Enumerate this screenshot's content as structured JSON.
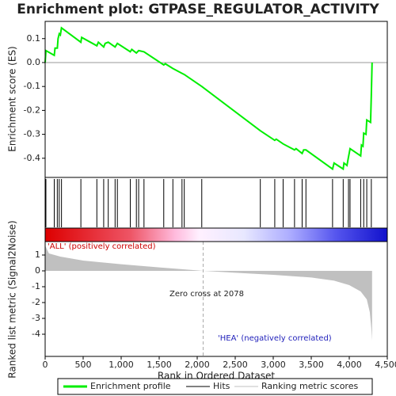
{
  "chart_data": [
    {
      "type": "line",
      "title": "Enrichment plot: GTPASE_REGULATOR_ACTIVITY",
      "ylabel": "Enrichment score (ES)",
      "xlim": [
        0,
        4500
      ],
      "ylim": [
        -0.48,
        0.172
      ],
      "yticks": [
        0.1,
        {
          "value": 0,
          "label": "0.0"
        },
        -0.1,
        -0.2,
        -0.3,
        -0.4
      ],
      "series": [
        {
          "name": "Enrichment profile",
          "color": "#00ee00",
          "x": [
            0,
            10,
            120,
            130,
            160,
            170,
            185,
            200,
            215,
            470,
            480,
            680,
            700,
            770,
            790,
            830,
            920,
            950,
            1120,
            1140,
            1200,
            1230,
            1300,
            1560,
            1580,
            1680,
            1800,
            1830,
            2060,
            2830,
            3020,
            3040,
            3130,
            3280,
            3300,
            3380,
            3400,
            3430,
            3780,
            3800,
            3920,
            3930,
            3970,
            3990,
            4010,
            4150,
            4160,
            4180,
            4190,
            4220,
            4230,
            4280,
            4290,
            4300
          ],
          "values": [
            0,
            0.05,
            0.03,
            0.06,
            0.06,
            0.1,
            0.12,
            0.115,
            0.145,
            0.085,
            0.105,
            0.07,
            0.085,
            0.065,
            0.08,
            0.085,
            0.065,
            0.08,
            0.045,
            0.055,
            0.04,
            0.05,
            0.045,
            -0.01,
            -0.005,
            -0.025,
            -0.045,
            -0.05,
            -0.1,
            -0.285,
            -0.325,
            -0.32,
            -0.34,
            -0.365,
            -0.36,
            -0.38,
            -0.365,
            -0.365,
            -0.445,
            -0.42,
            -0.445,
            -0.42,
            -0.43,
            -0.395,
            -0.36,
            -0.39,
            -0.345,
            -0.35,
            -0.295,
            -0.3,
            -0.24,
            -0.25,
            -0.14,
            0
          ]
        }
      ]
    },
    {
      "type": "hits",
      "series": [
        {
          "name": "Hits",
          "color": "#000000",
          "x": [
            10,
            120,
            160,
            185,
            215,
            470,
            680,
            770,
            830,
            920,
            950,
            1120,
            1200,
            1230,
            1300,
            1560,
            1680,
            1800,
            1830,
            2060,
            2830,
            3020,
            3130,
            3280,
            3380,
            3430,
            3780,
            3920,
            3990,
            4010,
            4150,
            4190,
            4230,
            4290
          ]
        }
      ]
    },
    {
      "type": "area",
      "ylabel": "Ranked list metric (Signal2Noise)",
      "xlabel": "Rank in Ordered Dataset",
      "xlim": [
        0,
        4500
      ],
      "ylim": [
        -5.4,
        1.85
      ],
      "xticks": [
        0,
        500,
        {
          "value": 1000,
          "label": "1,000"
        },
        {
          "value": 1500,
          "label": "1,500"
        },
        {
          "value": 2000,
          "label": "2,000"
        },
        {
          "value": 2500,
          "label": "2,500"
        },
        {
          "value": 3000,
          "label": "3,000"
        },
        {
          "value": 3500,
          "label": "3,500"
        },
        {
          "value": 4000,
          "label": "4,000"
        },
        {
          "value": 4500,
          "label": "4,500"
        }
      ],
      "yticks": [
        1,
        0,
        -1,
        -2,
        -3,
        -4
      ],
      "series": [
        {
          "name": "Ranking metric scores",
          "color": "#c0c0c0",
          "x": [
            0,
            50,
            200,
            500,
            1000,
            1500,
            2078,
            2500,
            3000,
            3500,
            3800,
            4000,
            4150,
            4230,
            4270,
            4290,
            4300
          ],
          "values": [
            1.6,
            1.1,
            0.9,
            0.65,
            0.42,
            0.22,
            0,
            -0.12,
            -0.25,
            -0.42,
            -0.62,
            -0.9,
            -1.3,
            -1.8,
            -2.6,
            -3.6,
            -4.4
          ]
        }
      ],
      "zero_cross": 2078,
      "zero_cross_label": "Zero cross at 2078",
      "pos_label": "'ALL' (positively correlated)",
      "neg_label": "'HEA' (negatively correlated)"
    }
  ]
}
